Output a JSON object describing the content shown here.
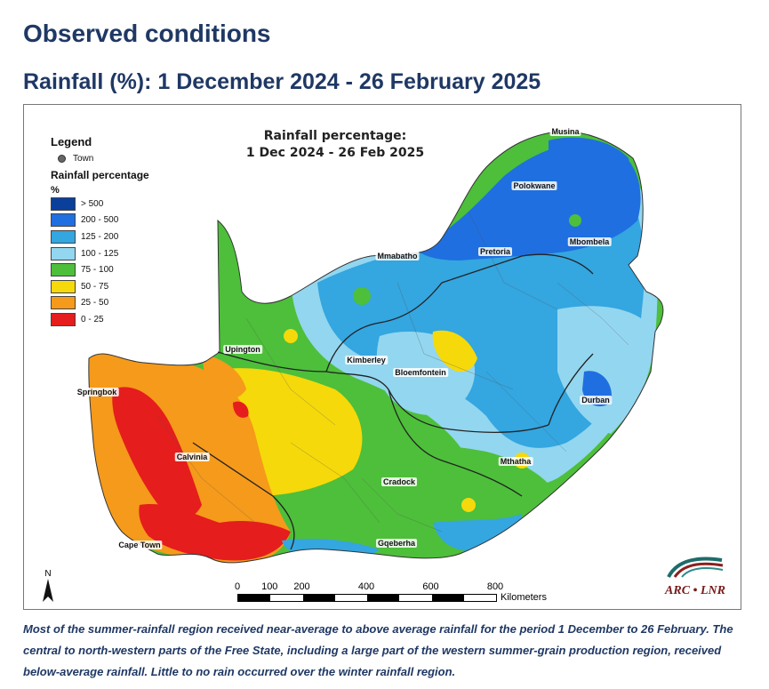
{
  "header": {
    "title": "Observed conditions",
    "subtitle": "Rainfall (%): 1 December 2024 - 26 February 2025"
  },
  "map": {
    "title_line1": "Rainfall percentage:",
    "title_line2": "1 Dec 2024 - 26 Feb 2025",
    "legend": {
      "title": "Legend",
      "town_label": "Town",
      "section_title": "Rainfall percentage",
      "unit": "%",
      "classes": [
        {
          "label": "> 500",
          "color": "#0a3f9c"
        },
        {
          "label": "200 - 500",
          "color": "#1f6fe0"
        },
        {
          "label": "125 - 200",
          "color": "#34a6e0"
        },
        {
          "label": "100 - 125",
          "color": "#93d6ef"
        },
        {
          "label": "75 - 100",
          "color": "#4dbf3a"
        },
        {
          "label": "50 - 75",
          "color": "#f5d90a"
        },
        {
          "label": "25 - 50",
          "color": "#f59a1a"
        },
        {
          "label": "0 - 25",
          "color": "#e51d1d"
        }
      ]
    },
    "towns": [
      {
        "name": "Musina"
      },
      {
        "name": "Polokwane"
      },
      {
        "name": "Mbombela"
      },
      {
        "name": "Pretoria"
      },
      {
        "name": "Mmabatho"
      },
      {
        "name": "Upington"
      },
      {
        "name": "Kimberley"
      },
      {
        "name": "Bloemfontein"
      },
      {
        "name": "Springbok"
      },
      {
        "name": "Durban"
      },
      {
        "name": "Calvinia"
      },
      {
        "name": "Mthatha"
      },
      {
        "name": "Cradock"
      },
      {
        "name": "Cape Town"
      },
      {
        "name": "Gqeberha"
      }
    ],
    "scale": {
      "ticks": [
        "0",
        "100",
        "200",
        "400",
        "600",
        "800"
      ],
      "unit": "Kilometers"
    },
    "north_label": "N",
    "logo_text": "ARC • LNR"
  },
  "caption": "Most of the summer-rainfall region received near-average to above average rainfall for the period 1 December to 26 February. The central to north-western parts of the Free State, including a large part of the western summer-grain production region, received below-average rainfall. Little to no rain occurred over the winter rainfall region."
}
